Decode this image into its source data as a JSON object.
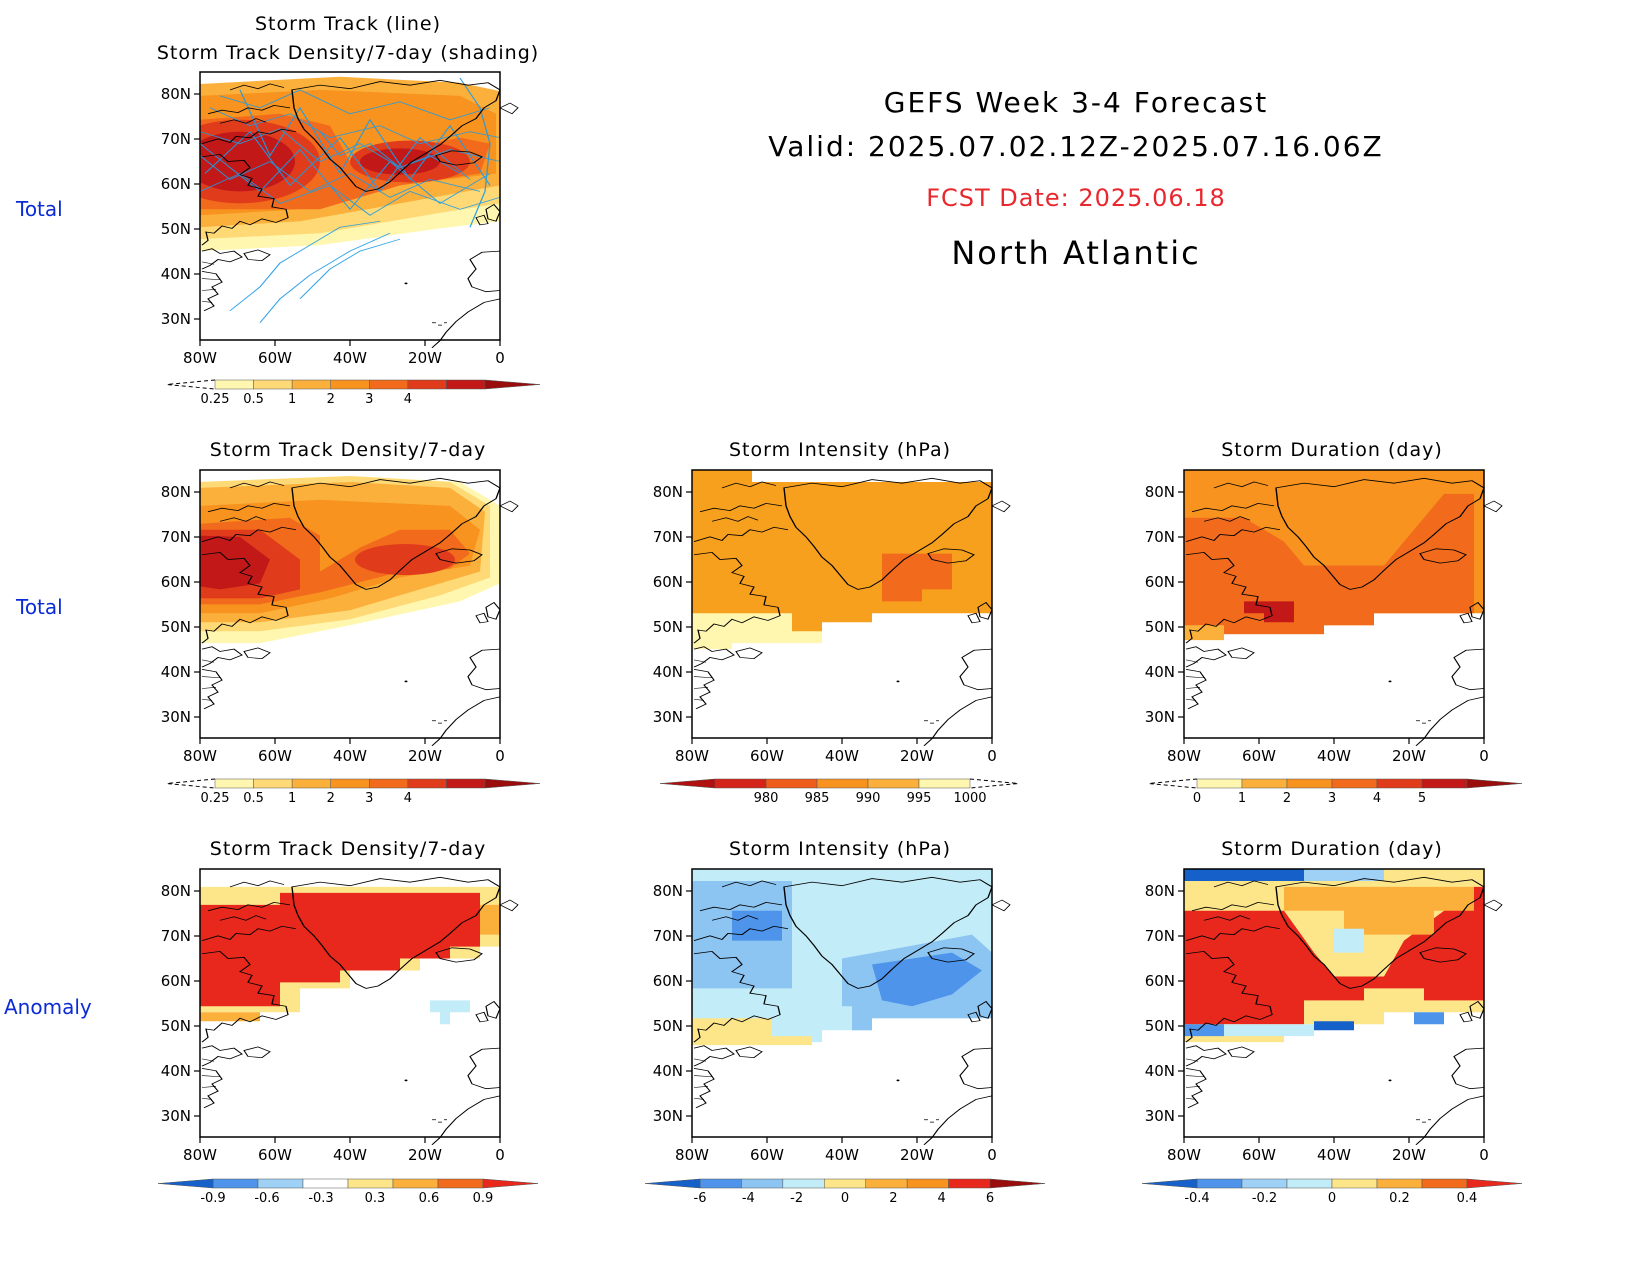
{
  "header": {
    "title_line1": "GEFS Week 3-4 Forecast",
    "title_line2": "Valid: 2025.07.02.12Z-2025.07.16.06Z",
    "fcst_date": "FCST Date: 2025.06.18",
    "region": "North Atlantic"
  },
  "row_labels": [
    "Total",
    "Total",
    "Anomaly"
  ],
  "axes": {
    "lat_labels": [
      "80N",
      "70N",
      "60N",
      "50N",
      "40N",
      "30N"
    ],
    "lon_labels": [
      "80W",
      "60W",
      "40W",
      "20W",
      "0"
    ]
  },
  "colors": {
    "row_label": "#0a2bd6",
    "fcst_date": "#e8282e",
    "storm_track_line": "#1e9be6"
  },
  "panels": [
    {
      "id": "track",
      "title_line1": "Storm Track (line)",
      "title_line2": "Storm Track Density/7-day (shading)",
      "colorbar": {
        "ticks": [
          "0.25",
          "0.5",
          "1",
          "2",
          "3",
          "4"
        ],
        "colors": [
          "#fff7b0",
          "#fed976",
          "#fbb03b",
          "#f7931e",
          "#f26b1d",
          "#e03c1c",
          "#c21818",
          "#9a0d0d"
        ],
        "ends": "dashed-left"
      }
    },
    {
      "id": "density_total",
      "title_line1": "Storm Track Density/7-day",
      "colorbar": {
        "ticks": [
          "0.25",
          "0.5",
          "1",
          "2",
          "3",
          "4"
        ],
        "colors": [
          "#fff7b0",
          "#fed976",
          "#fbb03b",
          "#f7931e",
          "#f26b1d",
          "#e03c1c",
          "#c21818",
          "#9a0d0d"
        ],
        "ends": "dashed-left"
      }
    },
    {
      "id": "intensity_total",
      "title_line1": "Storm Intensity (hPa)",
      "colorbar": {
        "ticks": [
          "980",
          "985",
          "990",
          "995",
          "1000"
        ],
        "colors": [
          "#b01010",
          "#d42419",
          "#ef5d1c",
          "#f7931e",
          "#fbb03b",
          "#fff7b0"
        ],
        "ends": "dashed-right"
      }
    },
    {
      "id": "duration_total",
      "title_line1": "Storm Duration (day)",
      "colorbar": {
        "ticks": [
          "0",
          "1",
          "2",
          "3",
          "4",
          "5"
        ],
        "colors": [
          "#fff7b0",
          "#fbb03b",
          "#f7931e",
          "#f26b1d",
          "#e03c1c",
          "#c21818",
          "#9a0d0d"
        ],
        "ends": "dashed-left"
      }
    },
    {
      "id": "density_anom",
      "title_line1": "Storm Track Density/7-day",
      "colorbar": {
        "ticks": [
          "-0.9",
          "-0.6",
          "-0.3",
          "0.3",
          "0.6",
          "0.9"
        ],
        "colors": [
          "#1560c9",
          "#4d94ea",
          "#9fd0f5",
          "#ffffff",
          "#fde58a",
          "#fbb03b",
          "#f26b1d",
          "#e8281c"
        ],
        "ends": "arrows"
      }
    },
    {
      "id": "intensity_anom",
      "title_line1": "Storm Intensity (hPa)",
      "colorbar": {
        "ticks": [
          "-6",
          "-4",
          "-2",
          "0",
          "2",
          "4",
          "6"
        ],
        "colors": [
          "#1560c9",
          "#4d94ea",
          "#8cc4f2",
          "#c2ecf7",
          "#fde58a",
          "#fbb03b",
          "#f7931e",
          "#e8281c",
          "#9a0d0d"
        ],
        "ends": "arrows"
      }
    },
    {
      "id": "duration_anom",
      "title_line1": "Storm Duration (day)",
      "colorbar": {
        "ticks": [
          "-0.4",
          "-0.2",
          "0",
          "0.2",
          "0.4"
        ],
        "colors": [
          "#1560c9",
          "#4d94ea",
          "#9fd0f5",
          "#c2ecf7",
          "#fde58a",
          "#fbb03b",
          "#f26b1d",
          "#e8281c"
        ],
        "ends": "arrows"
      }
    }
  ]
}
